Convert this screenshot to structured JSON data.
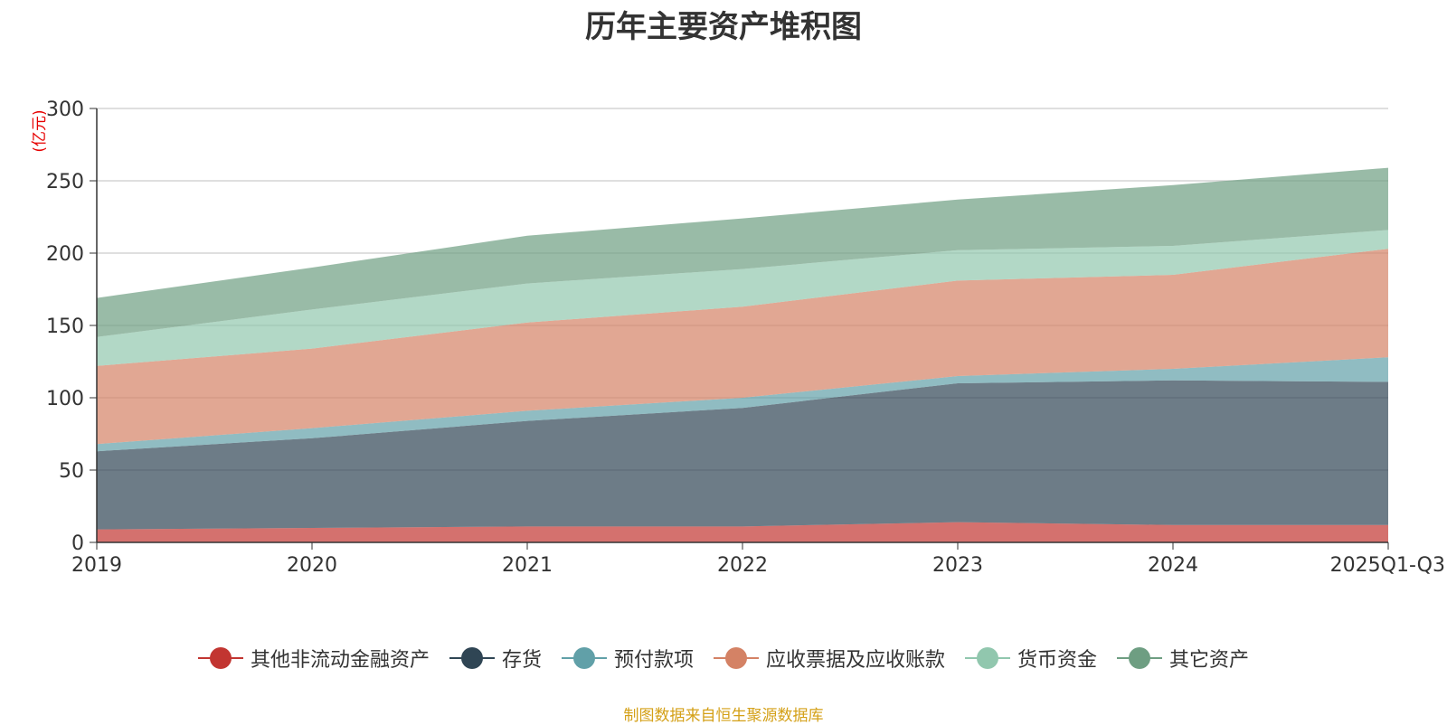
{
  "chart_data": {
    "type": "area",
    "stacked": true,
    "title": "历年主要资产堆积图",
    "unit_label": "(亿元)",
    "categories": [
      "2019",
      "2020",
      "2021",
      "2022",
      "2023",
      "2024",
      "2025Q1-Q3"
    ],
    "ylim": [
      0,
      300
    ],
    "yticks": [
      "0",
      "50",
      "100",
      "150",
      "200",
      "250",
      "300"
    ],
    "grid": true,
    "series": [
      {
        "name": "其他非流动金融资产",
        "color": "#c23531",
        "values": [
          9,
          10,
          11,
          11,
          14,
          12,
          12
        ]
      },
      {
        "name": "存货",
        "color": "#2f4554",
        "values": [
          54,
          62,
          73,
          82,
          96,
          100,
          99
        ]
      },
      {
        "name": "预付款项",
        "color": "#61a0a8",
        "values": [
          5,
          7,
          7,
          7,
          5,
          8,
          17
        ]
      },
      {
        "name": "应收票据及应收账款",
        "color": "#d48265",
        "values": [
          54,
          55,
          61,
          63,
          66,
          65,
          75
        ]
      },
      {
        "name": "货币资金",
        "color": "#91c7ae",
        "values": [
          20,
          27,
          27,
          26,
          21,
          20,
          13
        ]
      },
      {
        "name": "其它资产",
        "color": "#6e9e82",
        "values": [
          27,
          29,
          33,
          35,
          35,
          42,
          43
        ]
      }
    ],
    "legend_position": "bottom"
  },
  "source_note": "制图数据来自恒生聚源数据库",
  "colors": {
    "unit_label": "#e60000",
    "source_note": "#d4a017",
    "grid": "#cccccc",
    "axis": "#333333"
  }
}
